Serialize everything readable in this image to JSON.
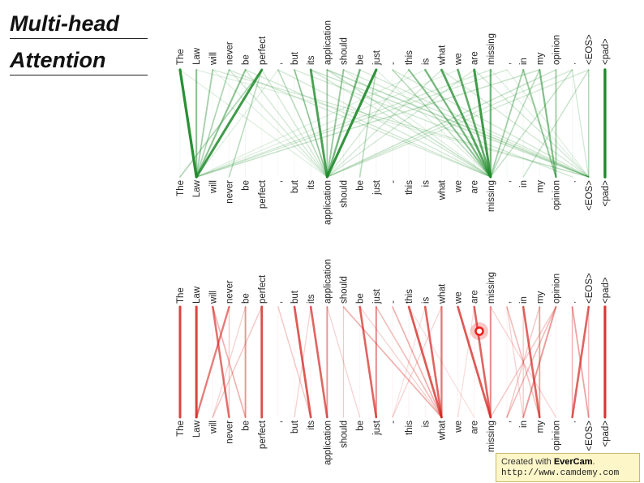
{
  "title": {
    "line1": "Multi-head",
    "line2": "Attention"
  },
  "tokens": [
    "The",
    "Law",
    "will",
    "never",
    "be",
    "perfect",
    ",",
    "but",
    "its",
    "application",
    "should",
    "be",
    "just",
    "-",
    "this",
    "is",
    "what",
    "we",
    "are",
    "missing",
    ",",
    "in",
    "my",
    "opinion",
    ".",
    "<EOS>",
    "<pad>"
  ],
  "colors": {
    "green": "#1e8a2a",
    "red": "#d3241e",
    "cursor": "#e8201a"
  },
  "panels": [
    {
      "name": "green-head",
      "color": "#1e8a2a",
      "links": [
        [
          0,
          1,
          0.95
        ],
        [
          1,
          1,
          0.5
        ],
        [
          2,
          1,
          0.4
        ],
        [
          3,
          1,
          0.35
        ],
        [
          4,
          1,
          0.5
        ],
        [
          5,
          1,
          0.85
        ],
        [
          5,
          0,
          0.35
        ],
        [
          5,
          3,
          0.3
        ],
        [
          6,
          9,
          0.3
        ],
        [
          7,
          9,
          0.35
        ],
        [
          8,
          9,
          0.8
        ],
        [
          9,
          9,
          0.4
        ],
        [
          10,
          9,
          0.45
        ],
        [
          11,
          9,
          0.6
        ],
        [
          12,
          9,
          0.9
        ],
        [
          12,
          11,
          0.3
        ],
        [
          14,
          19,
          0.5
        ],
        [
          15,
          19,
          0.6
        ],
        [
          16,
          19,
          0.75
        ],
        [
          17,
          19,
          0.7
        ],
        [
          18,
          19,
          0.85
        ],
        [
          19,
          19,
          0.6
        ],
        [
          13,
          19,
          0.3
        ],
        [
          21,
          19,
          0.4
        ],
        [
          22,
          19,
          0.3
        ],
        [
          22,
          23,
          0.55
        ],
        [
          21,
          23,
          0.45
        ],
        [
          23,
          23,
          0.4
        ],
        [
          24,
          19,
          0.25
        ],
        [
          26,
          26,
          1.0
        ],
        [
          25,
          21,
          0.25
        ],
        [
          25,
          9,
          0.2
        ],
        [
          24,
          9,
          0.2
        ],
        [
          23,
          9,
          0.25
        ],
        [
          22,
          1,
          0.25
        ],
        [
          20,
          1,
          0.2
        ],
        [
          19,
          1,
          0.2
        ],
        [
          18,
          9,
          0.2
        ],
        [
          17,
          1,
          0.15
        ],
        [
          16,
          9,
          0.2
        ],
        [
          15,
          1,
          0.15
        ],
        [
          14,
          9,
          0.2
        ],
        [
          9,
          25,
          0.3
        ],
        [
          10,
          25,
          0.2
        ],
        [
          8,
          25,
          0.25
        ],
        [
          7,
          24,
          0.2
        ],
        [
          4,
          19,
          0.2
        ],
        [
          3,
          19,
          0.2
        ],
        [
          2,
          25,
          0.2
        ],
        [
          1,
          25,
          0.15
        ],
        [
          6,
          19,
          0.2
        ],
        [
          11,
          25,
          0.2
        ],
        [
          12,
          19,
          0.15
        ],
        [
          13,
          25,
          0.2
        ],
        [
          0,
          9,
          0.15
        ],
        [
          2,
          9,
          0.15
        ],
        [
          3,
          9,
          0.2
        ],
        [
          4,
          9,
          0.2
        ],
        [
          16,
          25,
          0.2
        ],
        [
          18,
          25,
          0.2
        ],
        [
          19,
          25,
          0.15
        ],
        [
          20,
          25,
          0.15
        ],
        [
          9,
          19,
          0.25
        ],
        [
          8,
          19,
          0.2
        ],
        [
          10,
          19,
          0.15
        ],
        [
          5,
          9,
          0.2
        ],
        [
          7,
          9,
          0.25
        ],
        [
          6,
          1,
          0.15
        ],
        [
          25,
          25,
          0.3
        ],
        [
          24,
          25,
          0.2
        ]
      ]
    },
    {
      "name": "red-head",
      "color": "#d3241e",
      "links": [
        [
          0,
          0,
          0.85
        ],
        [
          1,
          1,
          0.85
        ],
        [
          2,
          3,
          0.65
        ],
        [
          2,
          4,
          0.35
        ],
        [
          3,
          1,
          0.6
        ],
        [
          4,
          4,
          0.45
        ],
        [
          5,
          5,
          0.8
        ],
        [
          5,
          2,
          0.25
        ],
        [
          6,
          8,
          0.25
        ],
        [
          7,
          8,
          0.75
        ],
        [
          8,
          9,
          0.7
        ],
        [
          9,
          9,
          0.45
        ],
        [
          10,
          10,
          0.2
        ],
        [
          11,
          12,
          0.7
        ],
        [
          12,
          12,
          0.5
        ],
        [
          10,
          16,
          0.35
        ],
        [
          13,
          16,
          0.35
        ],
        [
          14,
          16,
          0.75
        ],
        [
          15,
          16,
          0.7
        ],
        [
          16,
          16,
          0.6
        ],
        [
          12,
          16,
          0.3
        ],
        [
          11,
          16,
          0.2
        ],
        [
          17,
          19,
          0.75
        ],
        [
          18,
          19,
          0.7
        ],
        [
          19,
          19,
          0.5
        ],
        [
          20,
          22,
          0.3
        ],
        [
          21,
          22,
          0.7
        ],
        [
          22,
          22,
          0.4
        ],
        [
          23,
          21,
          0.45
        ],
        [
          23,
          20,
          0.3
        ],
        [
          23,
          19,
          0.25
        ],
        [
          22,
          20,
          0.25
        ],
        [
          24,
          25,
          0.4
        ],
        [
          25,
          24,
          0.7
        ],
        [
          24,
          24,
          0.3
        ],
        [
          26,
          26,
          0.9
        ],
        [
          19,
          23,
          0.2
        ],
        [
          14,
          18,
          0.15
        ],
        [
          9,
          11,
          0.2
        ],
        [
          8,
          7,
          0.2
        ],
        [
          3,
          3,
          0.2
        ],
        [
          4,
          2,
          0.2
        ],
        [
          21,
          21,
          0.2
        ],
        [
          16,
          13,
          0.2
        ],
        [
          15,
          13,
          0.15
        ],
        [
          20,
          21,
          0.2
        ],
        [
          18,
          17,
          0.15
        ],
        [
          25,
          25,
          0.25
        ]
      ]
    }
  ]
}
